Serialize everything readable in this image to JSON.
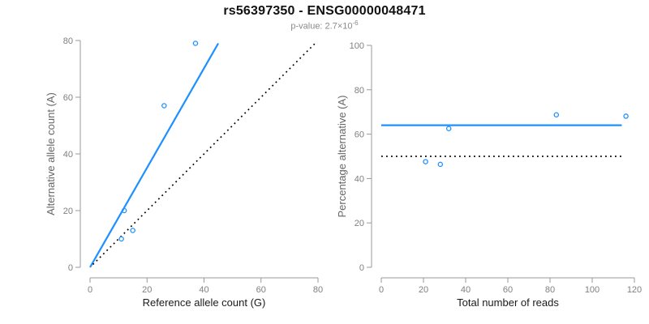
{
  "header": {
    "title": "rs56397350 - ENSG00000048471",
    "subtitle_main": "p-value: 2.7×10",
    "subtitle_exponent": "-6"
  },
  "colors": {
    "accent_blue": "#1e90ff",
    "dotted": "#000000",
    "axis": "#999999",
    "tick_label": "#7f7f7f",
    "x_title": "#1a1a1a",
    "y_title": "#666666"
  },
  "chart_data": [
    {
      "type": "scatter",
      "xlabel": "Reference allele count (G)",
      "ylabel": "Alternative allele count (A)",
      "xlim": [
        0,
        80
      ],
      "ylim": [
        0,
        80
      ],
      "xticks": [
        0,
        20,
        40,
        60,
        80
      ],
      "yticks": [
        0,
        20,
        40,
        60,
        80
      ],
      "grid": false,
      "legend": null,
      "points": [
        [
          11,
          10
        ],
        [
          12,
          20
        ],
        [
          15,
          13
        ],
        [
          26,
          57
        ],
        [
          37,
          79
        ]
      ],
      "lines": [
        {
          "name": "regression-line",
          "style": "solid",
          "color_key": "accent_blue",
          "x1": 0,
          "y1": 0,
          "x2": 45,
          "y2": 79
        },
        {
          "name": "identity-line",
          "style": "dotted",
          "color_key": "dotted",
          "x1": 1,
          "y1": 1,
          "x2": 79,
          "y2": 79
        }
      ]
    },
    {
      "type": "scatter",
      "xlabel": "Total number of reads",
      "ylabel": "Percentage alternative (A)",
      "xlim": [
        0,
        120
      ],
      "ylim": [
        0,
        100
      ],
      "xticks": [
        0,
        20,
        40,
        60,
        80,
        100,
        120
      ],
      "yticks": [
        0,
        20,
        40,
        60,
        80,
        100
      ],
      "grid": false,
      "legend": null,
      "points": [
        [
          21,
          47.6
        ],
        [
          28,
          46.4
        ],
        [
          32,
          62.5
        ],
        [
          83,
          68.7
        ],
        [
          116,
          68.1
        ]
      ],
      "lines": [
        {
          "name": "mean-percentage-line",
          "style": "solid",
          "color_key": "accent_blue",
          "x1": 0,
          "y1": 64,
          "x2": 114,
          "y2": 64
        },
        {
          "name": "fifty-percent-line",
          "style": "dotted",
          "color_key": "dotted",
          "x1": 0,
          "y1": 50,
          "x2": 114,
          "y2": 50
        }
      ]
    }
  ]
}
